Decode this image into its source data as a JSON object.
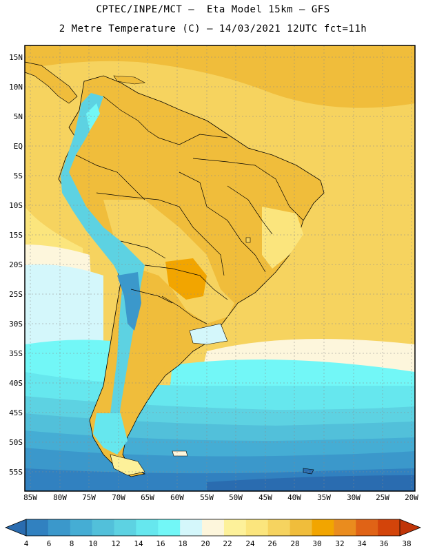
{
  "titles": {
    "line1": "CPTEC/INPE/MCT –  Eta Model 15km – GFS",
    "line2": "2 Metre Temperature (C) – 14/03/2021 12UTC fct=11h"
  },
  "axes": {
    "lat_labels": [
      "15N",
      "10N",
      "5N",
      "EQ",
      "5S",
      "10S",
      "15S",
      "20S",
      "25S",
      "30S",
      "35S",
      "40S",
      "45S",
      "50S",
      "55S"
    ],
    "lon_labels": [
      "85W",
      "80W",
      "75W",
      "70W",
      "65W",
      "60W",
      "55W",
      "50W",
      "45W",
      "40W",
      "35W",
      "30W",
      "25W",
      "20W"
    ]
  },
  "colorbar": {
    "labels": [
      "4",
      "6",
      "8",
      "10",
      "12",
      "14",
      "16",
      "18",
      "20",
      "22",
      "24",
      "26",
      "28",
      "30",
      "32",
      "34",
      "36",
      "38"
    ],
    "colors": [
      "#2a6cb0",
      "#3181c0",
      "#3b98cb",
      "#45add4",
      "#52c0da",
      "#5dd2e2",
      "#66e7ee",
      "#72f7f7",
      "#d4f7fb",
      "#fdf6dc",
      "#fdf19a",
      "#fbe57d",
      "#f6d35f",
      "#f0bd3b",
      "#f2a500",
      "#ea8c1e",
      "#e06316",
      "#d3440a",
      "#c03508"
    ]
  },
  "icons": {
    "left_arrow": "colorbar-left-arrow-icon",
    "right_arrow": "colorbar-right-arrow-icon"
  }
}
